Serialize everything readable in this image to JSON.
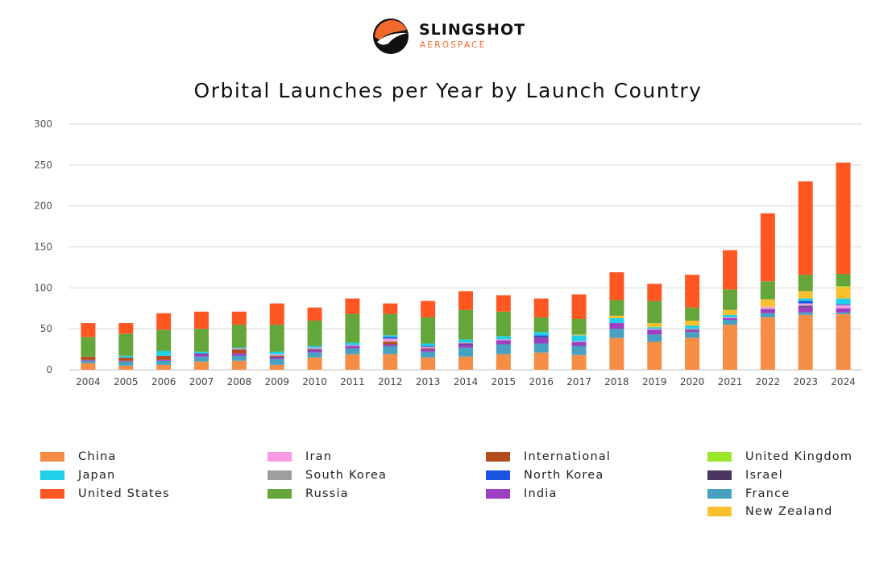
{
  "header": {
    "brand_name": "SLINGSHOT",
    "brand_sub": "AEROSPACE"
  },
  "colors": {
    "China": "#f58d45",
    "Japan": "#1fd0e8",
    "United States": "#ff5722",
    "Iran": "#f79ae3",
    "South Korea": "#9e9e9e",
    "Russia": "#64a63a",
    "International": "#b34d1c",
    "North Korea": "#1a56e0",
    "India": "#9c3fc0",
    "United Kingdom": "#9ae62a",
    "Israel": "#4a3560",
    "France": "#47a2c2",
    "New Zealand": "#fbc02d"
  },
  "legend": {
    "columns": [
      [
        "China",
        "Japan",
        "United States"
      ],
      [
        "Iran",
        "South Korea",
        "Russia"
      ],
      [
        "International",
        "North Korea",
        "India"
      ],
      [
        "United Kingdom",
        "Israel",
        "France",
        "New Zealand"
      ]
    ]
  },
  "chart_data": {
    "type": "bar",
    "stacked": true,
    "title": "Orbital Launches per Year by Launch Country",
    "xlabel": "",
    "ylabel": "",
    "ylim": [
      0,
      300
    ],
    "yticks": [
      0,
      50,
      100,
      150,
      200,
      250,
      300
    ],
    "grid": true,
    "legend_position": "bottom",
    "categories": [
      "2004",
      "2005",
      "2006",
      "2007",
      "2008",
      "2009",
      "2010",
      "2011",
      "2012",
      "2013",
      "2014",
      "2015",
      "2016",
      "2017",
      "2018",
      "2019",
      "2020",
      "2021",
      "2022",
      "2023",
      "2024"
    ],
    "series": [
      {
        "name": "China",
        "values": [
          8,
          5,
          6,
          10,
          11,
          6,
          15,
          19,
          19,
          15,
          16,
          19,
          21,
          18,
          39,
          34,
          39,
          55,
          64,
          67,
          68
        ]
      },
      {
        "name": "France",
        "values": [
          3,
          5,
          5,
          6,
          6,
          7,
          6,
          7,
          10,
          7,
          11,
          12,
          11,
          11,
          11,
          9,
          7,
          6,
          5,
          3,
          2
        ]
      },
      {
        "name": "India",
        "values": [
          1,
          1,
          1,
          3,
          3,
          2,
          3,
          3,
          2,
          3,
          4,
          5,
          7,
          5,
          7,
          6,
          2,
          2,
          5,
          7,
          5
        ]
      },
      {
        "name": "Israel",
        "values": [
          0,
          0,
          0,
          1,
          0,
          1,
          1,
          0,
          0,
          0,
          1,
          0,
          1,
          0,
          0,
          0,
          1,
          0,
          0,
          1,
          0
        ]
      },
      {
        "name": "International",
        "values": [
          4,
          4,
          5,
          0,
          5,
          1,
          0,
          0,
          3,
          1,
          0,
          0,
          0,
          0,
          0,
          0,
          0,
          0,
          0,
          0,
          0
        ]
      },
      {
        "name": "South Korea",
        "values": [
          0,
          0,
          0,
          0,
          0,
          1,
          1,
          0,
          1,
          1,
          0,
          0,
          0,
          0,
          0,
          0,
          0,
          0,
          1,
          1,
          0
        ]
      },
      {
        "name": "Iran",
        "values": [
          0,
          0,
          0,
          0,
          1,
          1,
          1,
          1,
          3,
          1,
          1,
          1,
          0,
          1,
          0,
          1,
          1,
          1,
          2,
          2,
          4
        ]
      },
      {
        "name": "North Korea",
        "values": [
          0,
          0,
          0,
          0,
          0,
          0,
          0,
          0,
          2,
          1,
          0,
          0,
          2,
          0,
          0,
          0,
          0,
          0,
          0,
          3,
          1
        ]
      },
      {
        "name": "Japan",
        "values": [
          0,
          2,
          6,
          2,
          1,
          3,
          2,
          3,
          2,
          3,
          4,
          4,
          4,
          7,
          6,
          2,
          4,
          3,
          0,
          3,
          7
        ]
      },
      {
        "name": "New Zealand",
        "values": [
          0,
          0,
          0,
          0,
          0,
          0,
          0,
          0,
          0,
          0,
          0,
          0,
          0,
          1,
          3,
          5,
          6,
          6,
          9,
          9,
          14
        ]
      },
      {
        "name": "United Kingdom",
        "values": [
          0,
          0,
          0,
          0,
          0,
          0,
          0,
          0,
          0,
          0,
          0,
          0,
          0,
          0,
          0,
          0,
          0,
          0,
          0,
          0,
          1
        ]
      },
      {
        "name": "Russia",
        "values": [
          24,
          27,
          26,
          28,
          28,
          33,
          31,
          35,
          26,
          32,
          36,
          30,
          18,
          19,
          19,
          27,
          16,
          25,
          22,
          20,
          15
        ]
      },
      {
        "name": "United States",
        "values": [
          17,
          13,
          20,
          21,
          16,
          26,
          16,
          19,
          13,
          20,
          23,
          20,
          23,
          30,
          34,
          21,
          40,
          48,
          83,
          114,
          136
        ]
      }
    ]
  }
}
